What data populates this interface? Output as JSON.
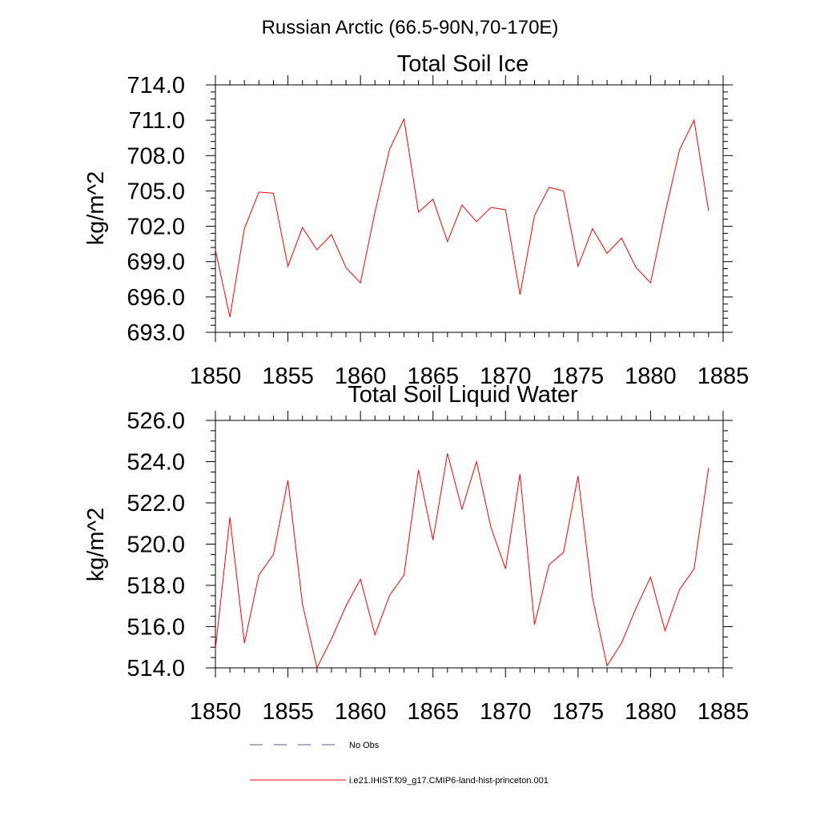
{
  "figure": {
    "main_title": "Russian Arctic (66.5-90N,70-170E)"
  },
  "chart_data": [
    {
      "type": "line",
      "title": "Total Soil Ice",
      "xlabel": "",
      "ylabel": "kg/m^2",
      "xlim": [
        1850,
        1885
      ],
      "ylim": [
        693.0,
        714.0
      ],
      "x_ticks": [
        "1850",
        "1855",
        "1860",
        "1865",
        "1870",
        "1875",
        "1880",
        "1885"
      ],
      "y_ticks": [
        "693.0",
        "696.0",
        "699.0",
        "702.0",
        "705.0",
        "708.0",
        "711.0",
        "714.0"
      ],
      "grid": false,
      "series": [
        {
          "name": "i.e21.IHIST.f09_g17.CMIP6-land-hist-princeton.001",
          "color": "#ff0000",
          "x": [
            1850,
            1851,
            1852,
            1853,
            1854,
            1855,
            1856,
            1857,
            1858,
            1859,
            1860,
            1861,
            1862,
            1863,
            1864,
            1865,
            1866,
            1867,
            1868,
            1869,
            1870,
            1871,
            1872,
            1873,
            1874,
            1875,
            1876,
            1877,
            1878,
            1879,
            1880,
            1881,
            1882,
            1883,
            1884
          ],
          "y": [
            700.0,
            694.3,
            701.8,
            704.9,
            704.8,
            698.6,
            701.9,
            700.0,
            701.3,
            698.5,
            697.2,
            703.2,
            708.5,
            711.1,
            703.2,
            704.3,
            700.7,
            703.8,
            702.4,
            703.6,
            703.4,
            696.2,
            702.9,
            705.3,
            705.0,
            698.6,
            701.8,
            699.7,
            701.0,
            698.5,
            697.2,
            703.1,
            708.5,
            711.0,
            703.3
          ]
        }
      ]
    },
    {
      "type": "line",
      "title": "Total Soil Liquid Water",
      "xlabel": "",
      "ylabel": "kg/m^2",
      "xlim": [
        1850,
        1885
      ],
      "ylim": [
        514.0,
        526.0
      ],
      "x_ticks": [
        "1850",
        "1855",
        "1860",
        "1865",
        "1870",
        "1875",
        "1880",
        "1885"
      ],
      "y_ticks": [
        "514.0",
        "516.0",
        "518.0",
        "520.0",
        "522.0",
        "524.0",
        "526.0"
      ],
      "grid": false,
      "series": [
        {
          "name": "i.e21.IHIST.f09_g17.CMIP6-land-hist-princeton.001",
          "color": "#ff0000",
          "x": [
            1850,
            1851,
            1852,
            1853,
            1854,
            1855,
            1856,
            1857,
            1858,
            1859,
            1860,
            1861,
            1862,
            1863,
            1864,
            1865,
            1866,
            1867,
            1868,
            1869,
            1870,
            1871,
            1872,
            1873,
            1874,
            1875,
            1876,
            1877,
            1878,
            1879,
            1880,
            1881,
            1882,
            1883,
            1884
          ],
          "y": [
            514.9,
            521.3,
            515.2,
            518.5,
            519.5,
            523.1,
            517.1,
            514.0,
            515.4,
            517.0,
            518.3,
            515.6,
            517.5,
            518.5,
            523.6,
            520.2,
            524.4,
            521.7,
            524.0,
            520.8,
            518.8,
            523.4,
            516.1,
            519.0,
            519.6,
            523.3,
            517.4,
            514.1,
            515.2,
            516.9,
            518.4,
            515.8,
            517.8,
            518.8,
            523.7
          ]
        }
      ]
    }
  ],
  "legend": {
    "placement": "bottom",
    "entries": [
      {
        "label": "No Obs",
        "style": "dashed",
        "color": "#5a5a8c"
      },
      {
        "label": "i.e21.IHIST.f09_g17.CMIP6-land-hist-princeton.001",
        "style": "solid",
        "color": "#ff0000"
      }
    ]
  }
}
